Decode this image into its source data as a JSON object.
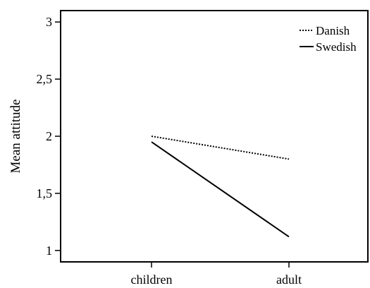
{
  "chart_data": {
    "type": "line",
    "title": "",
    "xlabel": "",
    "ylabel": "Mean attitude",
    "categories": [
      "children",
      "adult"
    ],
    "ylim": [
      0.9,
      3.1
    ],
    "yticks": [
      1,
      1.5,
      2,
      2.5,
      3
    ],
    "ytick_labels": [
      "1",
      "1,5",
      "2",
      "2,5",
      "3"
    ],
    "grid": false,
    "legend_position": "top-right",
    "series": [
      {
        "name": "Danish",
        "values": [
          2.0,
          1.8
        ],
        "style": "dotted",
        "color": "#000000"
      },
      {
        "name": "Swedish",
        "values": [
          1.95,
          1.12
        ],
        "style": "solid",
        "color": "#000000"
      }
    ]
  }
}
